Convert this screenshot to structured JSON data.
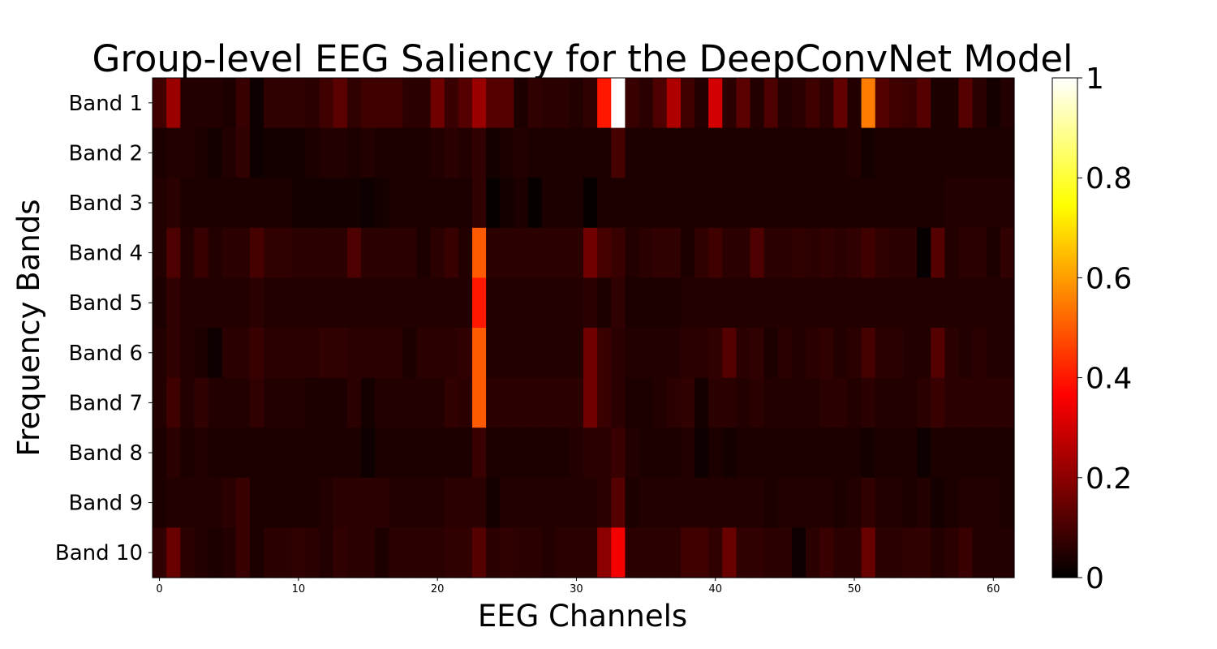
{
  "chart_data": {
    "type": "heatmap",
    "title": "Group-level EEG Saliency for the DeepConvNet Model",
    "xlabel": "EEG Channels",
    "ylabel": "Frequency Bands",
    "rows": [
      "Band 1",
      "Band 2",
      "Band 3",
      "Band 4",
      "Band 5",
      "Band 6",
      "Band 7",
      "Band 8",
      "Band 9",
      "Band 10"
    ],
    "n_channels": 62,
    "x_ticks": [
      "0",
      "10",
      "20",
      "30",
      "40",
      "50",
      "60"
    ],
    "x_tick_values": [
      0,
      10,
      20,
      30,
      40,
      50,
      60
    ],
    "colormap": "hot",
    "colorbar": {
      "vmin": 0,
      "vmax": 1,
      "ticks": [
        "0",
        "0.2",
        "0.4",
        "0.6",
        "0.8",
        "1"
      ],
      "tick_values": [
        0,
        0.2,
        0.4,
        0.6,
        0.8,
        1
      ]
    },
    "values": [
      [
        0.09,
        0.22,
        0.05,
        0.05,
        0.05,
        0.04,
        0.08,
        0.02,
        0.07,
        0.07,
        0.07,
        0.06,
        0.09,
        0.13,
        0.07,
        0.09,
        0.09,
        0.09,
        0.06,
        0.06,
        0.16,
        0.08,
        0.12,
        0.22,
        0.12,
        0.12,
        0.04,
        0.07,
        0.06,
        0.06,
        0.05,
        0.07,
        0.4,
        1.0,
        0.08,
        0.06,
        0.11,
        0.25,
        0.09,
        0.05,
        0.3,
        0.06,
        0.13,
        0.05,
        0.11,
        0.05,
        0.06,
        0.09,
        0.06,
        0.14,
        0.05,
        0.55,
        0.12,
        0.09,
        0.08,
        0.12,
        0.04,
        0.04,
        0.12,
        0.06,
        0.03,
        0.05
      ],
      [
        0.04,
        0.05,
        0.05,
        0.04,
        0.03,
        0.05,
        0.07,
        0.02,
        0.03,
        0.03,
        0.03,
        0.04,
        0.05,
        0.05,
        0.04,
        0.05,
        0.04,
        0.04,
        0.04,
        0.04,
        0.05,
        0.06,
        0.05,
        0.07,
        0.03,
        0.04,
        0.05,
        0.04,
        0.04,
        0.04,
        0.04,
        0.04,
        0.04,
        0.1,
        0.04,
        0.04,
        0.04,
        0.04,
        0.04,
        0.04,
        0.04,
        0.04,
        0.04,
        0.04,
        0.04,
        0.04,
        0.04,
        0.04,
        0.04,
        0.04,
        0.05,
        0.03,
        0.04,
        0.04,
        0.04,
        0.04,
        0.04,
        0.04,
        0.04,
        0.04,
        0.04,
        0.04
      ],
      [
        0.05,
        0.06,
        0.04,
        0.04,
        0.04,
        0.04,
        0.04,
        0.04,
        0.04,
        0.04,
        0.03,
        0.03,
        0.03,
        0.03,
        0.03,
        0.02,
        0.03,
        0.04,
        0.04,
        0.04,
        0.04,
        0.04,
        0.04,
        0.07,
        0.01,
        0.03,
        0.04,
        0.01,
        0.04,
        0.04,
        0.04,
        0.01,
        0.04,
        0.04,
        0.04,
        0.04,
        0.04,
        0.04,
        0.04,
        0.04,
        0.04,
        0.04,
        0.04,
        0.04,
        0.04,
        0.04,
        0.04,
        0.04,
        0.04,
        0.04,
        0.04,
        0.04,
        0.04,
        0.04,
        0.04,
        0.04,
        0.04,
        0.05,
        0.05,
        0.05,
        0.05,
        0.05
      ],
      [
        0.05,
        0.11,
        0.05,
        0.08,
        0.05,
        0.06,
        0.06,
        0.1,
        0.07,
        0.07,
        0.06,
        0.06,
        0.06,
        0.06,
        0.11,
        0.06,
        0.06,
        0.06,
        0.06,
        0.04,
        0.06,
        0.08,
        0.05,
        0.5,
        0.06,
        0.06,
        0.06,
        0.06,
        0.06,
        0.06,
        0.06,
        0.16,
        0.1,
        0.08,
        0.05,
        0.06,
        0.07,
        0.07,
        0.04,
        0.07,
        0.09,
        0.06,
        0.06,
        0.11,
        0.06,
        0.06,
        0.07,
        0.06,
        0.07,
        0.06,
        0.07,
        0.09,
        0.07,
        0.06,
        0.06,
        0.01,
        0.12,
        0.05,
        0.06,
        0.06,
        0.04,
        0.07
      ],
      [
        0.04,
        0.07,
        0.05,
        0.05,
        0.05,
        0.05,
        0.05,
        0.06,
        0.05,
        0.05,
        0.05,
        0.05,
        0.05,
        0.05,
        0.05,
        0.05,
        0.05,
        0.05,
        0.05,
        0.05,
        0.05,
        0.05,
        0.05,
        0.4,
        0.05,
        0.05,
        0.05,
        0.05,
        0.05,
        0.05,
        0.05,
        0.06,
        0.04,
        0.07,
        0.04,
        0.04,
        0.04,
        0.04,
        0.05,
        0.05,
        0.05,
        0.05,
        0.05,
        0.05,
        0.05,
        0.05,
        0.05,
        0.05,
        0.05,
        0.05,
        0.05,
        0.05,
        0.05,
        0.05,
        0.05,
        0.05,
        0.05,
        0.05,
        0.05,
        0.05,
        0.05,
        0.05
      ],
      [
        0.05,
        0.07,
        0.05,
        0.04,
        0.02,
        0.06,
        0.06,
        0.08,
        0.06,
        0.06,
        0.06,
        0.06,
        0.07,
        0.07,
        0.06,
        0.06,
        0.06,
        0.06,
        0.04,
        0.06,
        0.06,
        0.06,
        0.07,
        0.5,
        0.05,
        0.05,
        0.05,
        0.05,
        0.05,
        0.05,
        0.05,
        0.16,
        0.08,
        0.06,
        0.05,
        0.05,
        0.05,
        0.05,
        0.06,
        0.06,
        0.07,
        0.12,
        0.06,
        0.07,
        0.04,
        0.06,
        0.05,
        0.06,
        0.07,
        0.05,
        0.06,
        0.1,
        0.06,
        0.06,
        0.05,
        0.05,
        0.12,
        0.06,
        0.05,
        0.06,
        0.05,
        0.05
      ],
      [
        0.05,
        0.09,
        0.05,
        0.07,
        0.05,
        0.05,
        0.05,
        0.07,
        0.05,
        0.05,
        0.05,
        0.04,
        0.04,
        0.04,
        0.06,
        0.03,
        0.05,
        0.05,
        0.05,
        0.05,
        0.05,
        0.07,
        0.06,
        0.5,
        0.06,
        0.06,
        0.06,
        0.06,
        0.06,
        0.06,
        0.06,
        0.16,
        0.08,
        0.06,
        0.04,
        0.04,
        0.05,
        0.06,
        0.07,
        0.03,
        0.06,
        0.06,
        0.05,
        0.06,
        0.05,
        0.05,
        0.05,
        0.05,
        0.06,
        0.06,
        0.05,
        0.06,
        0.05,
        0.05,
        0.05,
        0.06,
        0.08,
        0.06,
        0.06,
        0.06,
        0.06,
        0.06
      ],
      [
        0.04,
        0.06,
        0.04,
        0.05,
        0.04,
        0.04,
        0.04,
        0.04,
        0.04,
        0.04,
        0.04,
        0.04,
        0.04,
        0.04,
        0.04,
        0.02,
        0.04,
        0.04,
        0.04,
        0.04,
        0.04,
        0.04,
        0.04,
        0.08,
        0.04,
        0.04,
        0.04,
        0.04,
        0.04,
        0.04,
        0.05,
        0.06,
        0.06,
        0.08,
        0.05,
        0.04,
        0.04,
        0.04,
        0.05,
        0.02,
        0.04,
        0.03,
        0.04,
        0.04,
        0.04,
        0.04,
        0.04,
        0.04,
        0.04,
        0.04,
        0.04,
        0.03,
        0.04,
        0.04,
        0.04,
        0.02,
        0.04,
        0.04,
        0.04,
        0.04,
        0.04,
        0.04
      ],
      [
        0.04,
        0.05,
        0.05,
        0.05,
        0.05,
        0.06,
        0.08,
        0.04,
        0.04,
        0.04,
        0.04,
        0.04,
        0.05,
        0.06,
        0.06,
        0.06,
        0.06,
        0.05,
        0.05,
        0.05,
        0.05,
        0.06,
        0.06,
        0.06,
        0.03,
        0.05,
        0.05,
        0.05,
        0.05,
        0.05,
        0.05,
        0.05,
        0.06,
        0.12,
        0.04,
        0.05,
        0.05,
        0.05,
        0.05,
        0.05,
        0.05,
        0.05,
        0.05,
        0.05,
        0.04,
        0.05,
        0.05,
        0.05,
        0.05,
        0.04,
        0.05,
        0.07,
        0.05,
        0.05,
        0.04,
        0.05,
        0.03,
        0.04,
        0.05,
        0.05,
        0.05,
        0.04
      ],
      [
        0.07,
        0.15,
        0.06,
        0.05,
        0.04,
        0.05,
        0.08,
        0.04,
        0.06,
        0.06,
        0.07,
        0.06,
        0.05,
        0.07,
        0.06,
        0.06,
        0.04,
        0.06,
        0.06,
        0.06,
        0.06,
        0.07,
        0.07,
        0.12,
        0.06,
        0.07,
        0.06,
        0.06,
        0.05,
        0.06,
        0.06,
        0.06,
        0.2,
        0.35,
        0.06,
        0.06,
        0.06,
        0.06,
        0.09,
        0.09,
        0.07,
        0.15,
        0.07,
        0.07,
        0.06,
        0.06,
        0.02,
        0.06,
        0.08,
        0.06,
        0.06,
        0.15,
        0.06,
        0.06,
        0.07,
        0.07,
        0.05,
        0.06,
        0.08,
        0.05,
        0.05,
        0.05
      ]
    ]
  }
}
